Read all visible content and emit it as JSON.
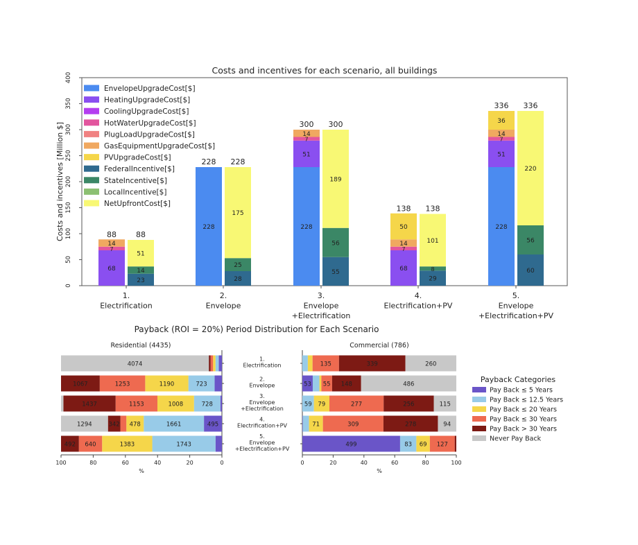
{
  "chart_data": [
    {
      "type": "bar",
      "stacked": true,
      "title": "Costs and incentives for each scenario, all buildings",
      "ylabel": "Costs and incentives [Million $]",
      "xlabel": "",
      "ylim": [
        0,
        400
      ],
      "yticks": [
        0,
        50,
        100,
        150,
        200,
        250,
        300,
        350,
        400
      ],
      "legend_position": "top-left",
      "categories": [
        "1.\nElectrification",
        "2.\nEnvelope",
        "3.\nEnvelope\n+Electrification",
        "4.\nElectrification+PV",
        "5.\nEnvelope\n+Electrification+PV"
      ],
      "cost_series": [
        {
          "name": "EnvelopeUpgradeCost[$]",
          "color": "#4b8bf0",
          "values": [
            0,
            228,
            228,
            0,
            228
          ]
        },
        {
          "name": "HeatingUpgradeCost[$]",
          "color": "#8a4ff0",
          "values": [
            68,
            0,
            51,
            68,
            51
          ]
        },
        {
          "name": "CoolingUpgradeCost[$]",
          "color": "#b43ef0",
          "values": [
            0,
            0,
            0,
            0,
            0
          ]
        },
        {
          "name": "HotWaterUpgradeCost[$]",
          "color": "#e2559e",
          "values": [
            7,
            0,
            7,
            7,
            7
          ]
        },
        {
          "name": "PlugLoadUpgradeCost[$]",
          "color": "#f08282",
          "values": [
            0,
            0,
            0,
            0,
            0
          ]
        },
        {
          "name": "GasEquipmentUpgradeCost[$]",
          "color": "#f0a860",
          "values": [
            14,
            0,
            14,
            14,
            14
          ]
        },
        {
          "name": "PVUpgradeCost[$]",
          "color": "#f5d64a",
          "values": [
            0,
            0,
            0,
            50,
            36
          ]
        }
      ],
      "incentive_series": [
        {
          "name": "FederalIncentive[$]",
          "color": "#2f6a8f",
          "values": [
            23,
            28,
            55,
            29,
            60
          ]
        },
        {
          "name": "StateIncentive[$]",
          "color": "#3b8766",
          "values": [
            14,
            25,
            56,
            8,
            56
          ]
        },
        {
          "name": "LocalIncentive[$]",
          "color": "#8cc072",
          "values": [
            0,
            0,
            0,
            0,
            0
          ]
        },
        {
          "name": "NetUpfrontCost[$]",
          "color": "#f8f874",
          "values": [
            51,
            175,
            189,
            101,
            220
          ]
        }
      ],
      "totals": [
        88,
        228,
        300,
        138,
        336
      ]
    },
    {
      "type": "bar",
      "orientation": "horizontal",
      "stacked": true,
      "title": "Payback (ROI = 20%) Period Distribution for Each Scenario",
      "xlabel": "%",
      "panels": [
        {
          "title": "Residential (4435)",
          "xlim": [
            100,
            0
          ],
          "xticks": [
            100,
            80,
            60,
            40,
            20,
            0
          ],
          "rows": [
            [
              89,
              89,
              67,
              67,
              49,
              4074
            ],
            [
              202,
              723,
              1190,
              1253,
              1067,
              0
            ],
            [
              42,
              728,
              1008,
              1153,
              1437,
              67
            ],
            [
              495,
              1661,
              478,
              165,
              342,
              1294
            ],
            [
              177,
              1743,
              1383,
              640,
              492,
              0
            ]
          ]
        },
        {
          "title": "Commercial (786)",
          "xlim": [
            0,
            100
          ],
          "xticks": [
            0,
            20,
            40,
            60,
            80,
            100
          ],
          "rows": [
            [
              0,
              28,
              24,
              135,
              339,
              260
            ],
            [
              53,
              34,
              10,
              55,
              148,
              486
            ],
            [
              0,
              59,
              79,
              277,
              256,
              115
            ],
            [
              2,
              32,
              71,
              309,
              278,
              94
            ],
            [
              499,
              83,
              69,
              127,
              8,
              0
            ]
          ]
        }
      ],
      "scenario_labels": [
        "1.\nElectrification",
        "2.\nEnvelope",
        "3.\nEnvelope\n+Electrification",
        "4.\nElectrification+PV",
        "5.\nEnvelope\n+Electrification+PV"
      ],
      "legend_title": "Payback Categories",
      "legend_position": "right",
      "categories": [
        {
          "name": "Pay Back ≤ 5 Years",
          "color": "#6a55c8"
        },
        {
          "name": "Pay Back ≤ 12.5 Years",
          "color": "#98cbe8"
        },
        {
          "name": "Pay Back ≤ 20 Years",
          "color": "#f5d64a"
        },
        {
          "name": "Pay Back ≤ 30 Years",
          "color": "#ee6a50"
        },
        {
          "name": "Pay Back > 30 Years",
          "color": "#7d1a14"
        },
        {
          "name": "Never Pay Back",
          "color": "#c8c8c8"
        }
      ]
    }
  ]
}
